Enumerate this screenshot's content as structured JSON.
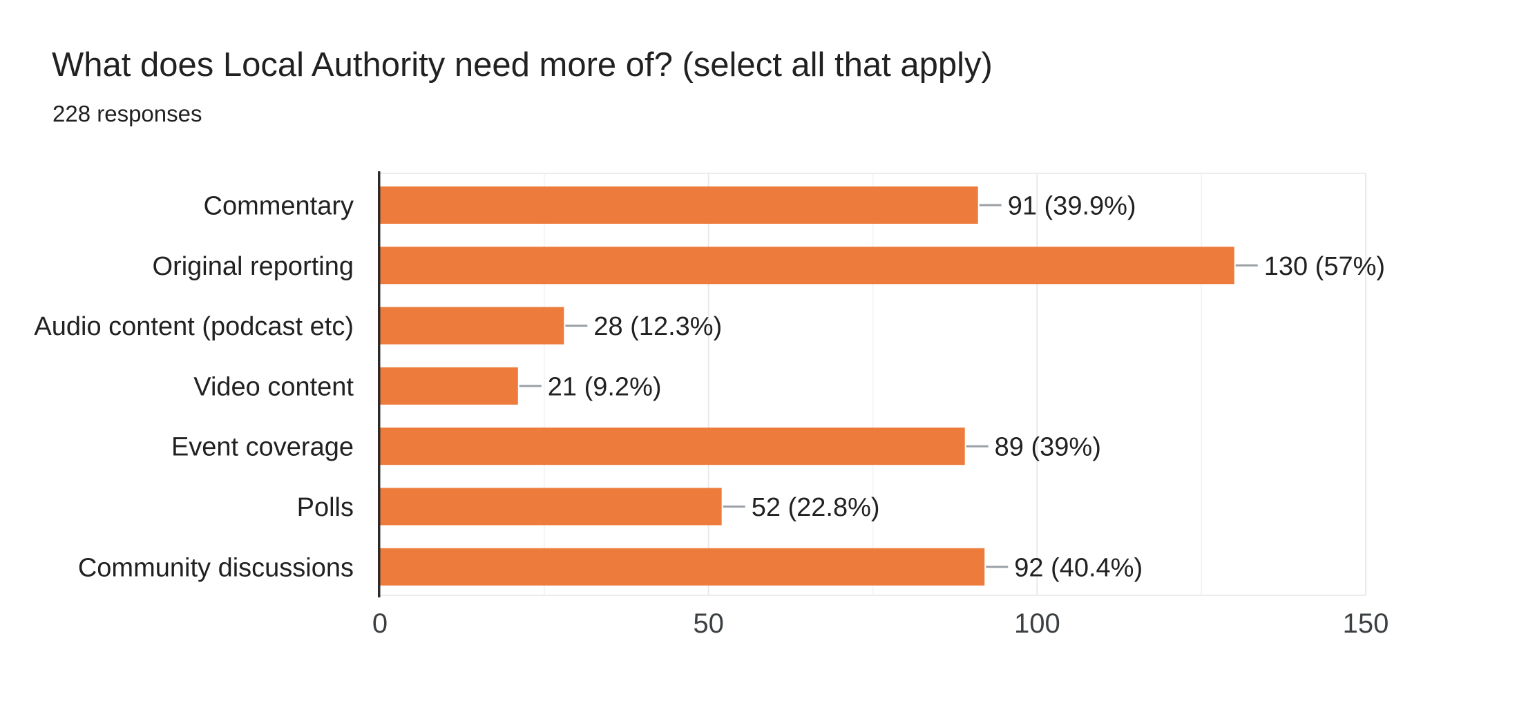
{
  "page": {
    "background": "#ffffff"
  },
  "chart_data": {
    "type": "bar",
    "orientation": "horizontal",
    "title": "What does Local Authority need more of? (select all that apply)",
    "subtitle": "228 responses",
    "total_responses": 228,
    "categories": [
      "Commentary",
      "Original reporting",
      "Audio content (podcast etc)",
      "Video content",
      "Event coverage",
      "Polls",
      "Community discussions"
    ],
    "values": [
      91,
      130,
      28,
      21,
      89,
      52,
      92
    ],
    "value_labels": [
      "91 (39.9%)",
      "130 (57%)",
      "28 (12.3%)",
      "21 (9.2%)",
      "89 (39%)",
      "52 (22.8%)",
      "92 (40.4%)"
    ],
    "xlim": [
      0,
      150
    ],
    "x_ticks": [
      0,
      50,
      100,
      150
    ],
    "x_tick_labels": [
      "0",
      "50",
      "100",
      "150"
    ],
    "x_minor_gridlines": [
      25,
      75,
      125
    ],
    "legend": "none",
    "grid": true,
    "colors": {
      "bar": "#EC7B3C",
      "axis_line": "#2a2a2a",
      "gridline_major": "#e9e9e9",
      "gridline_minor": "#f4f4f4",
      "plot_border": "#ececec",
      "connector": "#9aa0a6",
      "label_text": "#212121",
      "tick_text": "#3c4043",
      "title_text": "#212121"
    }
  }
}
